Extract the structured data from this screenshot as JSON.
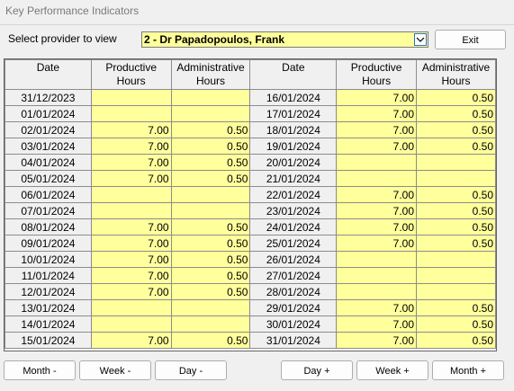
{
  "window": {
    "title": "Key Performance Indicators"
  },
  "provider": {
    "label": "Select provider to view",
    "selected": "2 - Dr Papadopoulos, Frank"
  },
  "exit_label": "Exit",
  "table": {
    "headers": {
      "date": "Date",
      "productive": [
        "Productive",
        "Hours"
      ],
      "administrative": [
        "Administrative",
        "Hours"
      ]
    },
    "left_rows": [
      {
        "date": "31/12/2023",
        "productive": "",
        "admin": ""
      },
      {
        "date": "01/01/2024",
        "productive": "",
        "admin": ""
      },
      {
        "date": "02/01/2024",
        "productive": "7.00",
        "admin": "0.50"
      },
      {
        "date": "03/01/2024",
        "productive": "7.00",
        "admin": "0.50"
      },
      {
        "date": "04/01/2024",
        "productive": "7.00",
        "admin": "0.50"
      },
      {
        "date": "05/01/2024",
        "productive": "7.00",
        "admin": "0.50"
      },
      {
        "date": "06/01/2024",
        "productive": "",
        "admin": ""
      },
      {
        "date": "07/01/2024",
        "productive": "",
        "admin": ""
      },
      {
        "date": "08/01/2024",
        "productive": "7.00",
        "admin": "0.50"
      },
      {
        "date": "09/01/2024",
        "productive": "7.00",
        "admin": "0.50"
      },
      {
        "date": "10/01/2024",
        "productive": "7.00",
        "admin": "0.50"
      },
      {
        "date": "11/01/2024",
        "productive": "7.00",
        "admin": "0.50"
      },
      {
        "date": "12/01/2024",
        "productive": "7.00",
        "admin": "0.50"
      },
      {
        "date": "13/01/2024",
        "productive": "",
        "admin": ""
      },
      {
        "date": "14/01/2024",
        "productive": "",
        "admin": ""
      },
      {
        "date": "15/01/2024",
        "productive": "7.00",
        "admin": "0.50"
      }
    ],
    "right_rows": [
      {
        "date": "16/01/2024",
        "productive": "7.00",
        "admin": "0.50"
      },
      {
        "date": "17/01/2024",
        "productive": "7.00",
        "admin": "0.50"
      },
      {
        "date": "18/01/2024",
        "productive": "7.00",
        "admin": "0.50"
      },
      {
        "date": "19/01/2024",
        "productive": "7.00",
        "admin": "0.50"
      },
      {
        "date": "20/01/2024",
        "productive": "",
        "admin": ""
      },
      {
        "date": "21/01/2024",
        "productive": "",
        "admin": ""
      },
      {
        "date": "22/01/2024",
        "productive": "7.00",
        "admin": "0.50"
      },
      {
        "date": "23/01/2024",
        "productive": "7.00",
        "admin": "0.50"
      },
      {
        "date": "24/01/2024",
        "productive": "7.00",
        "admin": "0.50"
      },
      {
        "date": "25/01/2024",
        "productive": "7.00",
        "admin": "0.50"
      },
      {
        "date": "26/01/2024",
        "productive": "",
        "admin": ""
      },
      {
        "date": "27/01/2024",
        "productive": "",
        "admin": ""
      },
      {
        "date": "28/01/2024",
        "productive": "",
        "admin": ""
      },
      {
        "date": "29/01/2024",
        "productive": "7.00",
        "admin": "0.50"
      },
      {
        "date": "30/01/2024",
        "productive": "7.00",
        "admin": "0.50"
      },
      {
        "date": "31/01/2024",
        "productive": "7.00",
        "admin": "0.50"
      }
    ]
  },
  "navigation": {
    "month_back": "Month -",
    "week_back": "Week -",
    "day_back": "Day -",
    "day_forward": "Day +",
    "week_forward": "Week +",
    "month_forward": "Month +"
  },
  "colors": {
    "field_yellow": "#ffff9c",
    "date_grey": "#f0f0f0",
    "focus_blue": "#2b6fc9"
  },
  "icons": {
    "dropdown": "chevron-down-icon"
  }
}
